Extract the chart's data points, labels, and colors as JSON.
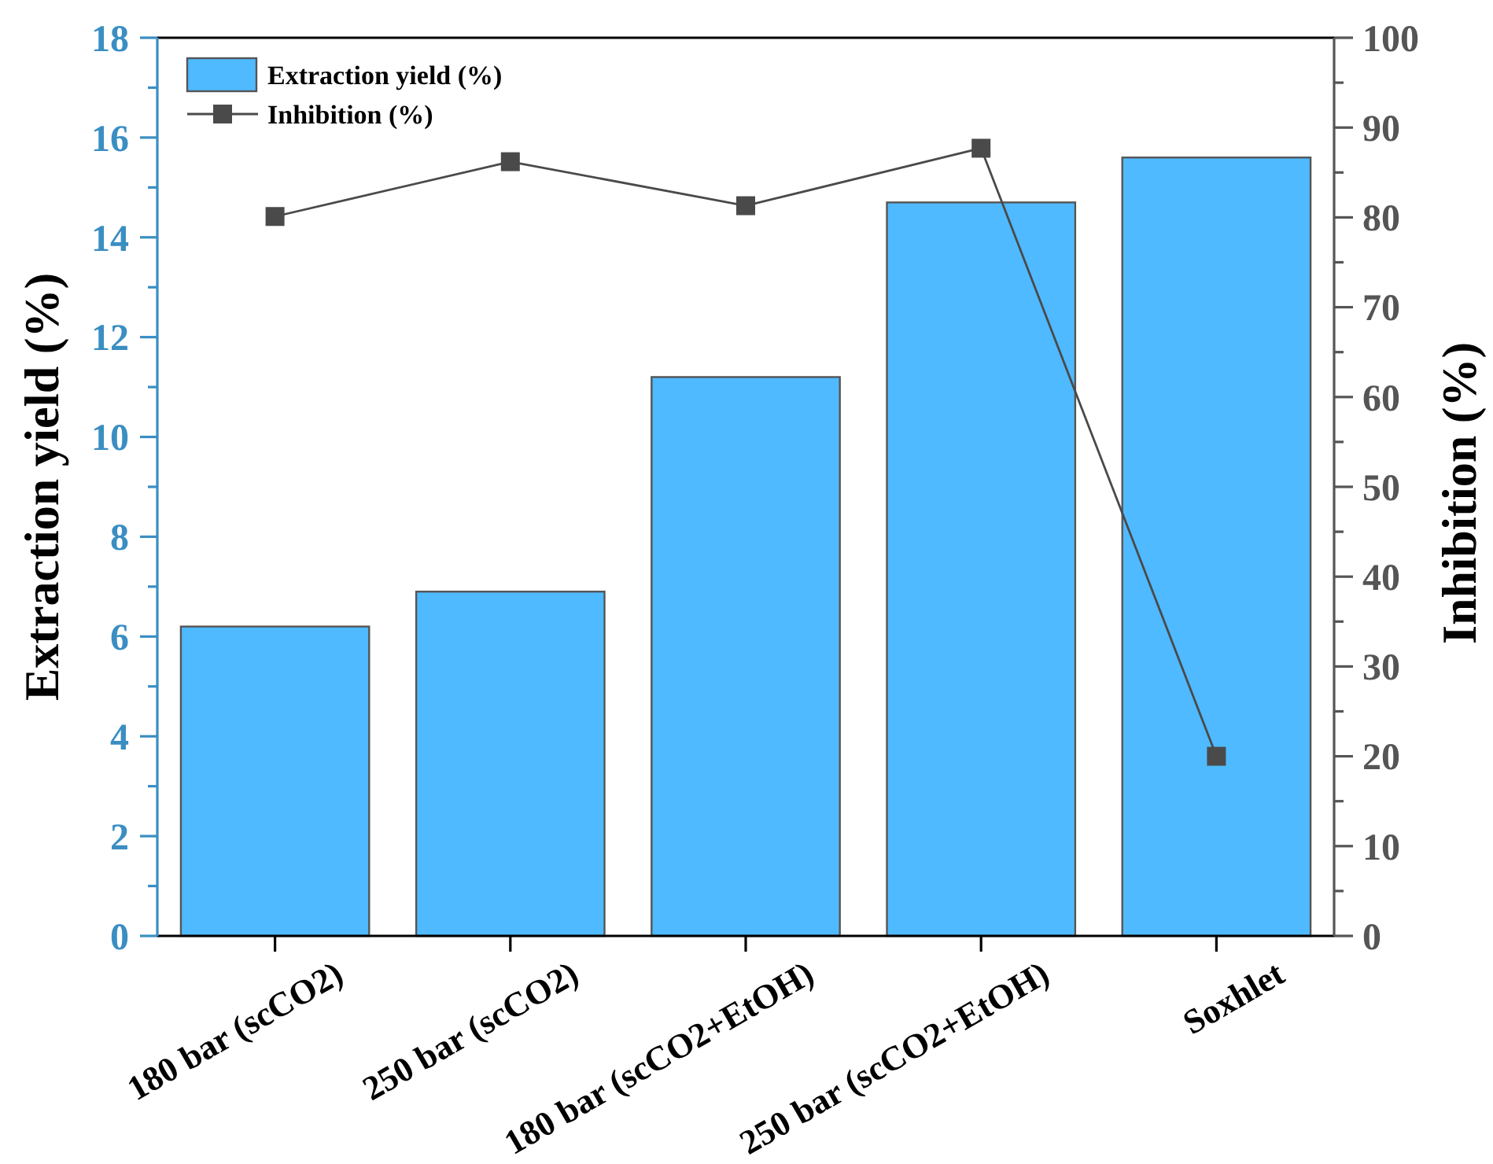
{
  "chart_data": {
    "type": "bar",
    "categories": [
      "180 bar (scCO2)",
      "250 bar (scCO2)",
      "180 bar (scCO2+EtOH)",
      "250 bar (scCO2+EtOH)",
      "Soxhlet"
    ],
    "series": [
      {
        "name": "Extraction yield (%)",
        "color": "#4fbaff",
        "values": [
          6.2,
          6.9,
          11.2,
          14.7,
          15.6
        ]
      },
      {
        "name": "Inhibition (%)",
        "type": "line",
        "axis": "y2",
        "color": "#4a4a4a",
        "values": [
          80.1,
          86.2,
          81.3,
          87.7,
          20.0
        ]
      }
    ],
    "ylabel": "Extraction yield (%)",
    "y2label": "Inhibition (%)",
    "ylim": [
      0,
      18
    ],
    "yticks": [
      0,
      {
        "value": 1,
        "label": null
      },
      2,
      {
        "value": 3,
        "label": null
      },
      4,
      {
        "value": 5,
        "label": null
      },
      6,
      {
        "value": 7,
        "label": null
      },
      8,
      {
        "value": 9,
        "label": null
      },
      10,
      {
        "value": 11,
        "label": null
      },
      12,
      {
        "value": 13,
        "label": null
      },
      14,
      {
        "value": 15,
        "label": null
      },
      16,
      {
        "value": 17,
        "label": null
      },
      18
    ],
    "y2lim": [
      0,
      100
    ],
    "y2ticks": [
      0,
      {
        "value": 5,
        "label": null
      },
      10,
      {
        "value": 15,
        "label": null
      },
      20,
      {
        "value": 25,
        "label": null
      },
      30,
      {
        "value": 35,
        "label": null
      },
      40,
      {
        "value": 45,
        "label": null
      },
      50,
      {
        "value": 55,
        "label": null
      },
      60,
      {
        "value": 65,
        "label": null
      },
      70,
      {
        "value": 75,
        "label": null
      },
      80,
      {
        "value": 85,
        "label": null
      },
      90,
      {
        "value": 95,
        "label": null
      },
      100
    ],
    "legend": "top left",
    "marker": "square",
    "line_style": "solid",
    "grid": false
  }
}
